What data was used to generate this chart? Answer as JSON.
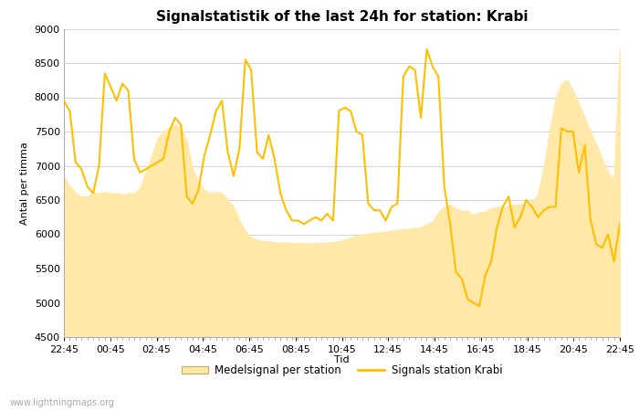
{
  "title": "Signalstatistik of the last 24h for station: Krabi",
  "xlabel": "Tid",
  "ylabel": "Antal per timma",
  "watermark": "www.lightningmaps.org",
  "ylim": [
    4500,
    9000
  ],
  "yticks": [
    4500,
    5000,
    5500,
    6000,
    6500,
    7000,
    7500,
    8000,
    8500,
    9000
  ],
  "xtick_labels": [
    "22:45",
    "00:45",
    "02:45",
    "04:45",
    "06:45",
    "08:45",
    "10:45",
    "12:45",
    "14:45",
    "16:45",
    "18:45",
    "20:45",
    "22:45"
  ],
  "legend_fill_label": "Medelsignal per station",
  "legend_line_label": "Signals station Krabi",
  "fill_color": "#FFE8A8",
  "line_color": "#FFBF00",
  "background_color": "#FFFFFF",
  "title_fontsize": 11,
  "axis_label_fontsize": 8,
  "tick_fontsize": 8,
  "signal_y": [
    7950,
    7800,
    7050,
    6950,
    6700,
    6600,
    7000,
    8350,
    8150,
    7950,
    8200,
    8100,
    7100,
    6900,
    6950,
    7000,
    7050,
    7100,
    7500,
    7700,
    7600,
    6550,
    6450,
    6650,
    7150,
    7450,
    7800,
    7950,
    7200,
    6850,
    7250,
    8550,
    8400,
    7200,
    7100,
    7450,
    7100,
    6600,
    6350,
    6200,
    6200,
    6150,
    6200,
    6250,
    6200,
    6300,
    6200,
    7800,
    7850,
    7800,
    7500,
    7450,
    6450,
    6350,
    6350,
    6200,
    6400,
    6450,
    8300,
    8450,
    8400,
    7700,
    8700,
    8450,
    8300,
    6700,
    6150,
    5450,
    5350,
    5050,
    5000,
    4950,
    5400,
    5600,
    6100,
    6400,
    6550,
    6100,
    6250,
    6500,
    6400,
    6250,
    6350,
    6400,
    6400,
    7550,
    7500,
    7500,
    6900,
    7300,
    6200,
    5850,
    5800,
    6000,
    5600,
    6150
  ],
  "fill_y": [
    6850,
    6700,
    6600,
    6550,
    6550,
    6600,
    6600,
    6620,
    6600,
    6600,
    6580,
    6600,
    6600,
    6680,
    6900,
    7150,
    7400,
    7500,
    7550,
    7600,
    7550,
    7350,
    6950,
    6750,
    6650,
    6600,
    6620,
    6600,
    6500,
    6400,
    6200,
    6050,
    5950,
    5920,
    5900,
    5900,
    5880,
    5880,
    5880,
    5870,
    5870,
    5870,
    5870,
    5870,
    5880,
    5880,
    5890,
    5900,
    5920,
    5950,
    5980,
    6000,
    6010,
    6020,
    6030,
    6040,
    6050,
    6060,
    6070,
    6080,
    6090,
    6100,
    6150,
    6180,
    6320,
    6400,
    6430,
    6380,
    6340,
    6340,
    6280,
    6320,
    6330,
    6380,
    6400,
    6390,
    6420,
    6430,
    6440,
    6440,
    6480,
    6580,
    6980,
    7500,
    7980,
    8200,
    8250,
    8100,
    7900,
    7700,
    7500,
    7300,
    7100,
    6900,
    6800,
    8700
  ]
}
